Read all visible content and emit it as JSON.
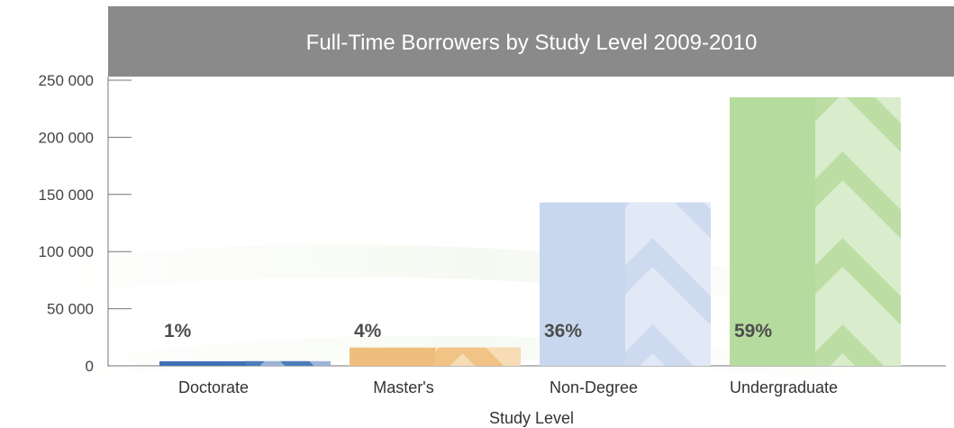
{
  "chart_data": {
    "type": "bar",
    "title": "Full-Time Borrowers by Study Level 2009-2010",
    "xlabel": "Study Level",
    "ylabel": "",
    "ylim": [
      0,
      250000
    ],
    "yticks": [
      0,
      50000,
      100000,
      150000,
      200000,
      250000
    ],
    "ytick_labels": [
      "0",
      "50 000",
      "100 000",
      "150 000",
      "200 000",
      "250 000"
    ],
    "categories": [
      "Doctorate",
      "Master's",
      "Non-Degree",
      "Undergraduate"
    ],
    "values": [
      4000,
      16000,
      143000,
      235000
    ],
    "percent_labels": [
      "1%",
      "4%",
      "36%",
      "59%"
    ],
    "grid": false,
    "colors": {
      "title_band": "#8a8a8a",
      "bars_dark": [
        "#3f72b5",
        "#f0be7c",
        "#c9d7ee",
        "#b6db9e"
      ],
      "bars_light": [
        "#9bb4d8",
        "#f7dcb6",
        "#e2e9f6",
        "#d9edcc"
      ]
    }
  }
}
